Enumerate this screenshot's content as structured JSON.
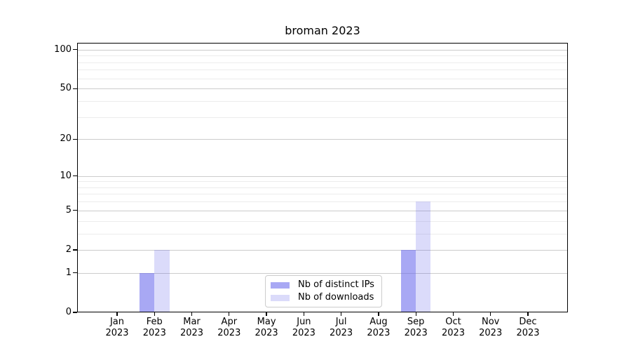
{
  "chart_data": {
    "type": "bar",
    "title": "broman 2023",
    "categories": [
      "Jan",
      "Feb",
      "Mar",
      "Apr",
      "May",
      "Jun",
      "Jul",
      "Aug",
      "Sep",
      "Oct",
      "Nov",
      "Dec"
    ],
    "year": "2023",
    "series": [
      {
        "name": "Nb of distinct IPs",
        "color": "#aaaaf0",
        "base_color": "#6464eb",
        "alpha": 0.56,
        "values": [
          0,
          1,
          0,
          0,
          0,
          0,
          0,
          0,
          2,
          0,
          0,
          0
        ]
      },
      {
        "name": "Nb of downloads",
        "color": "#dcdcf8",
        "base_color": "#6464eb",
        "alpha": 0.23,
        "values": [
          0,
          2,
          0,
          0,
          0,
          0,
          0,
          0,
          6,
          0,
          0,
          0
        ]
      }
    ],
    "xlabel": "",
    "ylabel": "",
    "y_axis": {
      "scale": "log1p",
      "ticks": [
        0,
        1,
        2,
        5,
        10,
        20,
        50,
        100
      ],
      "minor_ticks": [
        3,
        4,
        6,
        7,
        8,
        9,
        30,
        40,
        60,
        70,
        80,
        90
      ],
      "max": 113
    },
    "grid": {
      "horizontal": true,
      "major_color": "#cccccc",
      "minor_color": "#ececec"
    },
    "legend": {
      "position": "lower-center"
    },
    "spine_color": "#000000",
    "background": "#ffffff",
    "text_color": "#000000"
  }
}
